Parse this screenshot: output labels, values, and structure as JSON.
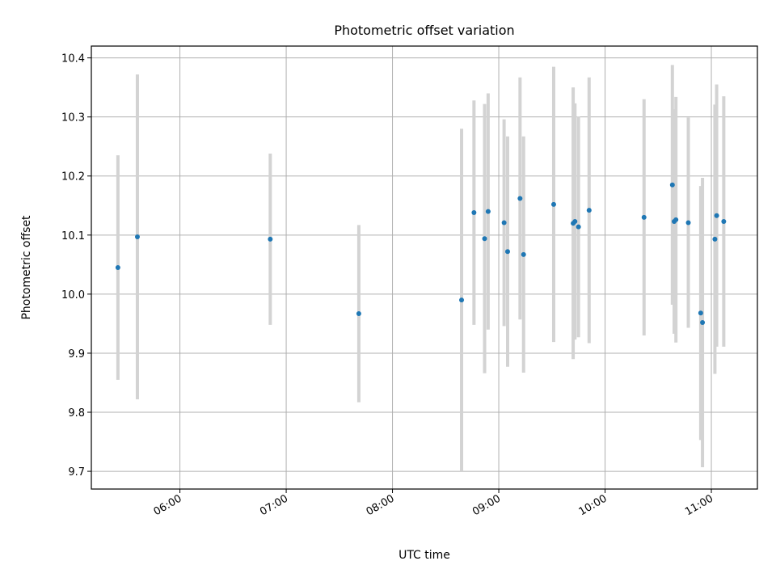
{
  "chart_data": {
    "type": "scatter",
    "title": "Photometric offset variation",
    "xlabel": "UTC time",
    "ylabel": "Photometric offset",
    "x_ticks": [
      "06:00",
      "07:00",
      "08:00",
      "09:00",
      "10:00",
      "11:00"
    ],
    "y_ticks": [
      "9.7",
      "9.8",
      "9.9",
      "10.0",
      "10.1",
      "10.2",
      "10.3",
      "10.4"
    ],
    "xlim": [
      "05:10",
      "11:26"
    ],
    "ylim": [
      9.67,
      10.42
    ],
    "grid": true,
    "colors": {
      "point": "#1f77b4",
      "errorbar": "#d3d3d3",
      "grid": "#b0b0b0"
    },
    "series": [
      {
        "points": [
          {
            "x": "05:25",
            "y": 10.045,
            "err": 0.19
          },
          {
            "x": "05:36",
            "y": 10.097,
            "err": 0.275
          },
          {
            "x": "06:51",
            "y": 10.093,
            "err": 0.145
          },
          {
            "x": "07:41",
            "y": 9.967,
            "err": 0.15
          },
          {
            "x": "08:39",
            "y": 9.99,
            "err": 0.29
          },
          {
            "x": "08:46",
            "y": 10.138,
            "err": 0.19
          },
          {
            "x": "08:52",
            "y": 10.094,
            "err": 0.228
          },
          {
            "x": "08:54",
            "y": 10.14,
            "err": 0.2
          },
          {
            "x": "09:03",
            "y": 10.121,
            "err": 0.175
          },
          {
            "x": "09:05",
            "y": 10.072,
            "err": 0.195
          },
          {
            "x": "09:12",
            "y": 10.162,
            "err": 0.205
          },
          {
            "x": "09:14",
            "y": 10.067,
            "err": 0.2
          },
          {
            "x": "09:31",
            "y": 10.152,
            "err": 0.233
          },
          {
            "x": "09:42",
            "y": 10.12,
            "err": 0.23
          },
          {
            "x": "09:43",
            "y": 10.123,
            "err": 0.2
          },
          {
            "x": "09:45",
            "y": 10.114,
            "err": 0.187
          },
          {
            "x": "09:51",
            "y": 10.142,
            "err": 0.225
          },
          {
            "x": "10:22",
            "y": 10.13,
            "err": 0.2
          },
          {
            "x": "10:38",
            "y": 10.185,
            "err": 0.203
          },
          {
            "x": "10:39",
            "y": 10.123,
            "err": 0.19
          },
          {
            "x": "10:40",
            "y": 10.126,
            "err": 0.208
          },
          {
            "x": "10:47",
            "y": 10.121,
            "err": 0.178
          },
          {
            "x": "10:54",
            "y": 9.968,
            "err": 0.215
          },
          {
            "x": "10:55",
            "y": 9.952,
            "err": 0.245
          },
          {
            "x": "11:02",
            "y": 10.093,
            "err": 0.228
          },
          {
            "x": "11:03",
            "y": 10.133,
            "err": 0.222
          },
          {
            "x": "11:07",
            "y": 10.123,
            "err": 0.212
          }
        ]
      }
    ]
  }
}
